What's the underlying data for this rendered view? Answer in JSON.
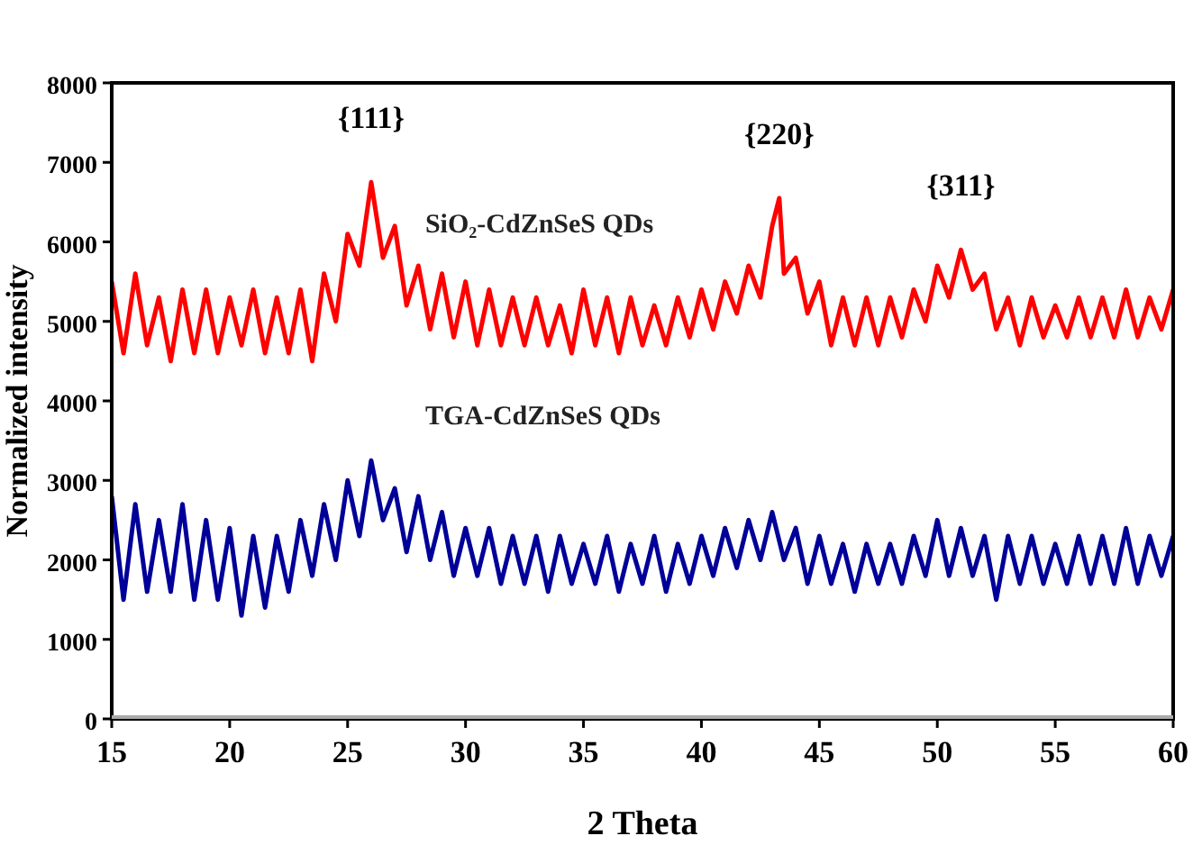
{
  "chart_data": {
    "type": "line",
    "xlabel": "2 Theta",
    "ylabel": "Normalized intensity",
    "xlim": [
      15,
      60
    ],
    "ylim": [
      0,
      8000
    ],
    "xticks": [
      15,
      20,
      25,
      30,
      35,
      40,
      45,
      50,
      55,
      60
    ],
    "yticks": [
      0,
      1000,
      2000,
      3000,
      4000,
      5000,
      6000,
      7000,
      8000
    ],
    "grid": false,
    "marker": "none",
    "line_style": "solid",
    "annotations": [
      {
        "text": "{111}",
        "x": 26,
        "y": 6750
      },
      {
        "text": "{220}",
        "x": 43.3,
        "y": 6550
      },
      {
        "text": "{311}",
        "x": 51,
        "y": 5900
      }
    ],
    "series": [
      {
        "name": "SiO₂-CdZnSeS QDs",
        "color": "#ff0000",
        "x": [
          15,
          15.5,
          16,
          16.5,
          17,
          17.5,
          18,
          18.5,
          19,
          19.5,
          20,
          20.5,
          21,
          21.5,
          22,
          22.5,
          23,
          23.5,
          24,
          24.5,
          25,
          25.5,
          26,
          26.5,
          27,
          27.5,
          28,
          28.5,
          29,
          29.5,
          30,
          30.5,
          31,
          31.5,
          32,
          32.5,
          33,
          33.5,
          34,
          34.5,
          35,
          35.5,
          36,
          36.5,
          37,
          37.5,
          38,
          38.5,
          39,
          39.5,
          40,
          40.5,
          41,
          41.5,
          42,
          42.5,
          43,
          43.3,
          43.5,
          44,
          44.5,
          45,
          45.5,
          46,
          46.5,
          47,
          47.5,
          48,
          48.5,
          49,
          49.5,
          50,
          50.5,
          51,
          51.5,
          52,
          52.5,
          53,
          53.5,
          54,
          54.5,
          55,
          55.5,
          56,
          56.5,
          57,
          57.5,
          58,
          58.5,
          59,
          59.5,
          60
        ],
        "values": [
          5500,
          4600,
          5600,
          4700,
          5300,
          4500,
          5400,
          4600,
          5400,
          4600,
          5300,
          4700,
          5400,
          4600,
          5300,
          4600,
          5400,
          4500,
          5600,
          5000,
          6100,
          5700,
          6750,
          5800,
          6200,
          5200,
          5700,
          4900,
          5600,
          4800,
          5500,
          4700,
          5400,
          4700,
          5300,
          4700,
          5300,
          4700,
          5200,
          4600,
          5400,
          4700,
          5300,
          4600,
          5300,
          4700,
          5200,
          4700,
          5300,
          4800,
          5400,
          4900,
          5500,
          5100,
          5700,
          5300,
          6200,
          6550,
          5600,
          5800,
          5100,
          5500,
          4700,
          5300,
          4700,
          5300,
          4700,
          5300,
          4800,
          5400,
          5000,
          5700,
          5300,
          5900,
          5400,
          5600,
          4900,
          5300,
          4700,
          5300,
          4800,
          5200,
          4800,
          5300,
          4800,
          5300,
          4800,
          5400,
          4800,
          5300,
          4900,
          5400
        ]
      },
      {
        "name": "TGA-CdZnSeS QDs",
        "color": "#000099",
        "x": [
          15,
          15.5,
          16,
          16.5,
          17,
          17.5,
          18,
          18.5,
          19,
          19.5,
          20,
          20.5,
          21,
          21.5,
          22,
          22.5,
          23,
          23.5,
          24,
          24.5,
          25,
          25.5,
          26,
          26.5,
          27,
          27.5,
          28,
          28.5,
          29,
          29.5,
          30,
          30.5,
          31,
          31.5,
          32,
          32.5,
          33,
          33.5,
          34,
          34.5,
          35,
          35.5,
          36,
          36.5,
          37,
          37.5,
          38,
          38.5,
          39,
          39.5,
          40,
          40.5,
          41,
          41.5,
          42,
          42.5,
          43,
          43.5,
          44,
          44.5,
          45,
          45.5,
          46,
          46.5,
          47,
          47.5,
          48,
          48.5,
          49,
          49.5,
          50,
          50.5,
          51,
          51.5,
          52,
          52.5,
          53,
          53.5,
          54,
          54.5,
          55,
          55.5,
          56,
          56.5,
          57,
          57.5,
          58,
          58.5,
          59,
          59.5,
          60
        ],
        "values": [
          2800,
          1500,
          2700,
          1600,
          2500,
          1600,
          2700,
          1500,
          2500,
          1500,
          2400,
          1300,
          2300,
          1400,
          2300,
          1600,
          2500,
          1800,
          2700,
          2000,
          3000,
          2300,
          3250,
          2500,
          2900,
          2100,
          2800,
          2000,
          2600,
          1800,
          2400,
          1800,
          2400,
          1700,
          2300,
          1700,
          2300,
          1600,
          2300,
          1700,
          2200,
          1700,
          2300,
          1600,
          2200,
          1700,
          2300,
          1600,
          2200,
          1700,
          2300,
          1800,
          2400,
          1900,
          2500,
          2000,
          2600,
          2000,
          2400,
          1700,
          2300,
          1700,
          2200,
          1600,
          2200,
          1700,
          2200,
          1700,
          2300,
          1800,
          2500,
          1800,
          2400,
          1800,
          2300,
          1500,
          2300,
          1700,
          2300,
          1700,
          2200,
          1700,
          2300,
          1700,
          2300,
          1700,
          2400,
          1700,
          2300,
          1800,
          2300
        ]
      }
    ]
  }
}
